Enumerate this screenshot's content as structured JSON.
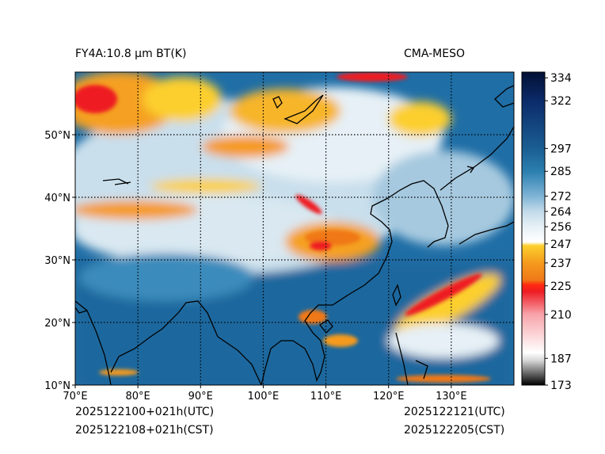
{
  "title_left": "FY4A:10.8 µm BT(K)",
  "title_right": "CMA-MESO",
  "footer": {
    "init_utc": "2025122100+021h(UTC)",
    "init_cst": "2025122108+021h(CST)",
    "valid_utc": "2025122121(UTC)",
    "valid_cst": "2025122205(CST)"
  },
  "chart_data": {
    "type": "heatmap",
    "title": "FY4A:10.8 µm BT(K)",
    "xlabel": "",
    "ylabel": "",
    "xlim": [
      70,
      140
    ],
    "ylim": [
      10,
      60
    ],
    "xticks": [
      {
        "value": 70,
        "label": "70°E"
      },
      {
        "value": 80,
        "label": "80°E"
      },
      {
        "value": 90,
        "label": "90°E"
      },
      {
        "value": 100,
        "label": "100°E"
      },
      {
        "value": 110,
        "label": "110°E"
      },
      {
        "value": 120,
        "label": "120°E"
      },
      {
        "value": 130,
        "label": "130°E"
      }
    ],
    "yticks": [
      {
        "value": 10,
        "label": "10°N"
      },
      {
        "value": 20,
        "label": "20°N"
      },
      {
        "value": 30,
        "label": "30°N"
      },
      {
        "value": 40,
        "label": "40°N"
      },
      {
        "value": 50,
        "label": "50°N"
      }
    ],
    "gridlines": {
      "x": [
        80,
        90,
        100,
        110,
        120,
        130
      ],
      "y": [
        20,
        30,
        40,
        50
      ]
    },
    "colorbar": {
      "range": [
        173,
        337
      ],
      "tick_values": [
        173,
        187,
        210,
        225,
        237,
        247,
        256,
        264,
        272,
        285,
        297,
        322,
        334
      ],
      "colormap": [
        {
          "v": 173,
          "c": "#000000"
        },
        {
          "v": 186,
          "c": "#d8d8d8"
        },
        {
          "v": 190,
          "c": "#ffffff"
        },
        {
          "v": 210,
          "c": "#f7a4aa"
        },
        {
          "v": 222,
          "c": "#ee1c24"
        },
        {
          "v": 225.5,
          "c": "#ff2a10"
        },
        {
          "v": 228,
          "c": "#f07818"
        },
        {
          "v": 237,
          "c": "#f59a1d"
        },
        {
          "v": 246,
          "c": "#fccf2d"
        },
        {
          "v": 248,
          "c": "#ffffff"
        },
        {
          "v": 256,
          "c": "#e6f0f6"
        },
        {
          "v": 264,
          "c": "#c2dbea"
        },
        {
          "v": 272,
          "c": "#7fb4d5"
        },
        {
          "v": 285,
          "c": "#2b7fb0"
        },
        {
          "v": 297,
          "c": "#1a5e93"
        },
        {
          "v": 322,
          "c": "#0b2b69"
        },
        {
          "v": 337,
          "c": "#031035"
        }
      ]
    },
    "field_description_bands": [
      {
        "lat_from": 50,
        "lat_to": 60,
        "lon_from": 70,
        "lon_to": 100,
        "bt_range": [
          220,
          250
        ]
      },
      {
        "lat_from": 45,
        "lat_to": 55,
        "lon_from": 100,
        "lon_to": 120,
        "bt_range": [
          230,
          255
        ]
      },
      {
        "lat_from": 30,
        "lat_to": 42,
        "lon_from": 70,
        "lon_to": 110,
        "bt_range": [
          245,
          270
        ]
      },
      {
        "lat_from": 10,
        "lat_to": 30,
        "lon_from": 70,
        "lon_to": 140,
        "bt_range": [
          280,
          300
        ]
      },
      {
        "lat_from": 15,
        "lat_to": 30,
        "lon_from": 120,
        "lon_to": 140,
        "bt_range": [
          225,
          265
        ]
      }
    ]
  }
}
